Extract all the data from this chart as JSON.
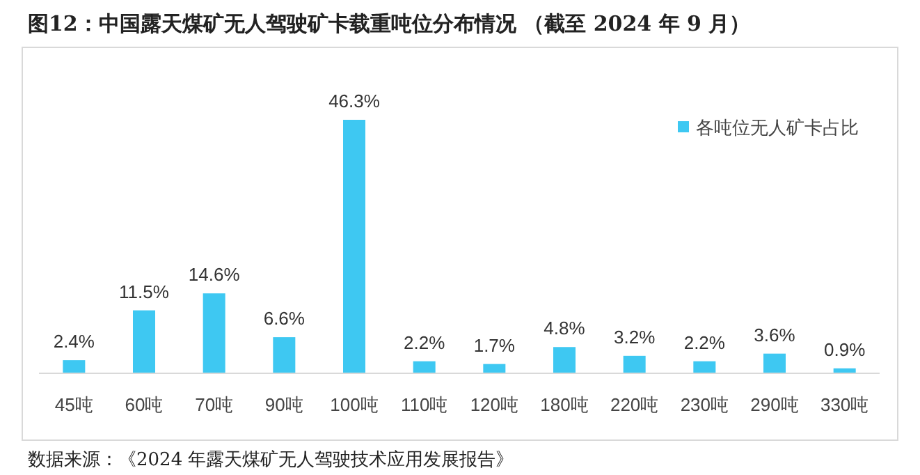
{
  "chart_data": {
    "type": "bar",
    "title": "图12：中国露天煤矿无人驾驶矿卡载重吨位分布情况 （截至 2024 年 9 月）",
    "categories": [
      "45吨",
      "60吨",
      "70吨",
      "90吨",
      "100吨",
      "110吨",
      "120吨",
      "180吨",
      "220吨",
      "230吨",
      "290吨",
      "330吨"
    ],
    "series": [
      {
        "name": "各吨位无人矿卡占比",
        "color": "#3ec8f2",
        "values": [
          2.4,
          11.5,
          14.6,
          6.6,
          46.3,
          2.2,
          1.7,
          4.8,
          3.2,
          2.2,
          3.6,
          0.9
        ],
        "value_labels": [
          "2.4%",
          "11.5%",
          "14.6%",
          "6.6%",
          "46.3%",
          "2.2%",
          "1.7%",
          "4.8%",
          "3.2%",
          "2.2%",
          "3.6%",
          "0.9%"
        ]
      }
    ],
    "legend": "top right",
    "annotations": [
      "数据来源：《2024 年露天煤矿无人驾驶技术应用发展报告》"
    ]
  }
}
